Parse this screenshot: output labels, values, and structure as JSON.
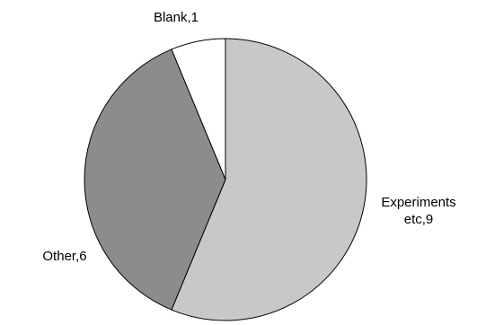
{
  "chart_data": {
    "type": "pie",
    "title": "",
    "slices": [
      {
        "label_lines": [
          "Experiments",
          "etc,9"
        ],
        "category": "Experiments etc",
        "value": 9,
        "color": "#c8c8c8"
      },
      {
        "label_lines": [
          "Other,6"
        ],
        "category": "Other",
        "value": 6,
        "color": "#8c8c8c"
      },
      {
        "label_lines": [
          "Blank,1"
        ],
        "category": "Blank",
        "value": 1,
        "color": "#ffffff"
      }
    ],
    "start_angle_deg": 0,
    "direction": "clockwise",
    "legend": "none"
  }
}
